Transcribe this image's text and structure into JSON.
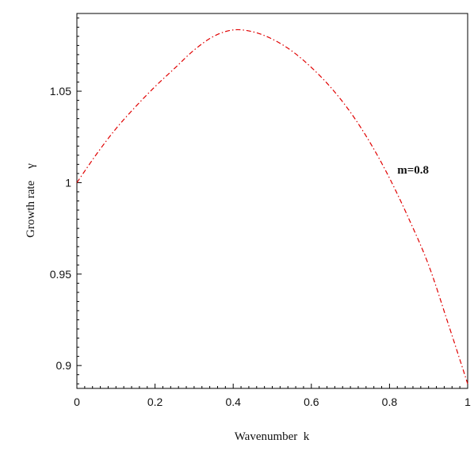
{
  "chart_data": {
    "type": "line",
    "title": "",
    "xlabel": "Wavenumber  k",
    "ylabel": "Growth rate    γ",
    "xlim": [
      0,
      1
    ],
    "ylim": [
      0.8875,
      1.0925
    ],
    "xticks": [
      0,
      0.2,
      0.4,
      0.6,
      0.8,
      1
    ],
    "xtick_labels": [
      "0",
      "0.2",
      "0.4",
      "0.6",
      "0.8",
      "1"
    ],
    "yticks": [
      0.9,
      0.95,
      1,
      1.05
    ],
    "ytick_labels": [
      "0.9",
      "0.95",
      "1",
      "1.05"
    ],
    "grid": false,
    "series": [
      {
        "name": "m=0.8",
        "color": "#e00000",
        "line_style": "dash-dot",
        "x": [
          0,
          0.05,
          0.1,
          0.15,
          0.2,
          0.25,
          0.3,
          0.35,
          0.4,
          0.45,
          0.5,
          0.55,
          0.6,
          0.65,
          0.7,
          0.75,
          0.8,
          0.85,
          0.9,
          0.95,
          1.0
        ],
        "y": [
          1.0,
          1.0155,
          1.0295,
          1.0415,
          1.0525,
          1.0625,
          1.0725,
          1.08,
          1.0835,
          1.0825,
          1.0785,
          1.072,
          1.063,
          1.052,
          1.0385,
          1.022,
          1.0025,
          0.98,
          0.955,
          0.923,
          0.89
        ]
      }
    ],
    "annotations": [
      {
        "text": "m=0.8",
        "x": 0.82,
        "y": 1.005
      }
    ]
  }
}
